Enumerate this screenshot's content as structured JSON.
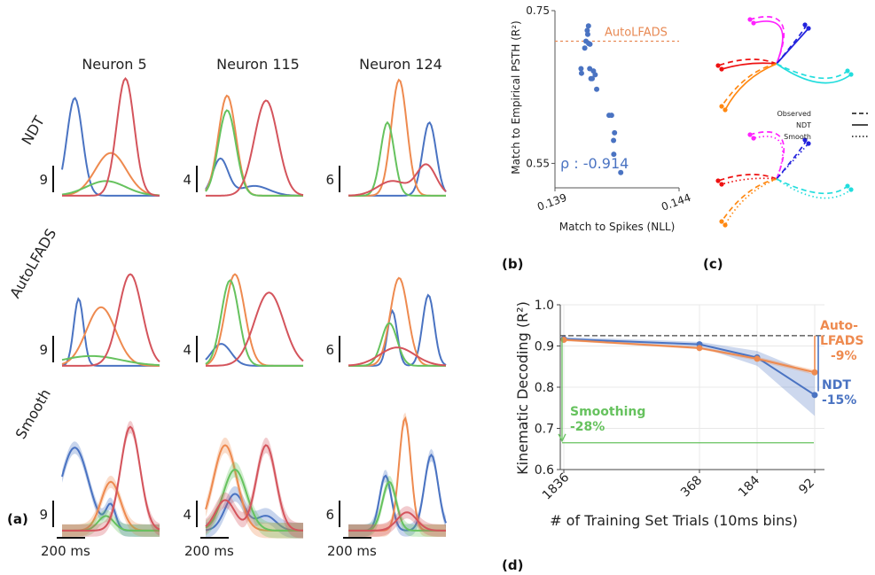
{
  "panel_labels": {
    "a": "(a)",
    "b": "(b)",
    "c": "(c)",
    "d": "(d)"
  },
  "colors": {
    "blue": "#4a73c2",
    "orange": "#ee8a4f",
    "green": "#66c25e",
    "red": "#d4545c",
    "pred_line": "#e88a55",
    "dash_black": "#444444",
    "traj_magenta": "#ff22ff",
    "traj_blue": "#2222dd",
    "traj_red": "#ee1111",
    "traj_orange": "#ff8811",
    "traj_cyan": "#22dddd"
  },
  "chart_data": [
    {
      "id": "a",
      "type": "line",
      "columns": [
        "Neuron 5",
        "Neuron 115",
        "Neuron 124"
      ],
      "rows": [
        "NDT",
        "AutoLFADS",
        "Smooth"
      ],
      "scale_labels": [
        [
          "9",
          "4",
          "6"
        ],
        [
          "9",
          "4",
          "6"
        ],
        [
          "9",
          "4",
          "6"
        ]
      ],
      "time_scale_label": "200 ms",
      "series_colors": [
        "blue",
        "orange",
        "green",
        "red"
      ]
    },
    {
      "id": "b",
      "type": "scatter",
      "xlabel": "Match to Spikes (NLL)",
      "ylabel": "Match to Empirical PSTH (R²)",
      "xticks": [
        "0.139",
        "0.144"
      ],
      "yticks": [
        "0.75",
        "0.55"
      ],
      "xlim": [
        0.139,
        0.144
      ],
      "ylim": [
        0.518,
        0.75
      ],
      "reference_line": {
        "label": "AutoLFADS",
        "y": 0.71
      },
      "annotation": "ρ : -0.914",
      "points": [
        [
          0.14035,
          0.73
        ],
        [
          0.1403,
          0.724
        ],
        [
          0.14032,
          0.719
        ],
        [
          0.14025,
          0.71
        ],
        [
          0.14036,
          0.707
        ],
        [
          0.14041,
          0.706
        ],
        [
          0.1402,
          0.701
        ],
        [
          0.14005,
          0.674
        ],
        [
          0.1404,
          0.674
        ],
        [
          0.14055,
          0.671
        ],
        [
          0.14062,
          0.666
        ],
        [
          0.14007,
          0.668
        ],
        [
          0.14045,
          0.661
        ],
        [
          0.1405,
          0.661
        ],
        [
          0.14068,
          0.647
        ],
        [
          0.14118,
          0.613
        ],
        [
          0.14128,
          0.613
        ],
        [
          0.1414,
          0.59
        ],
        [
          0.14136,
          0.58
        ],
        [
          0.14137,
          0.562
        ],
        [
          0.14165,
          0.538
        ]
      ]
    },
    {
      "id": "c",
      "type": "line",
      "legend": [
        "Observed",
        "NDT",
        "Smooth"
      ],
      "legend_position": "center-right"
    },
    {
      "id": "d",
      "type": "line",
      "xlabel": "# of Training Set Trials (10ms bins)",
      "ylabel": "Kinematic Decoding (R²)",
      "x": [
        1836,
        368,
        184,
        92
      ],
      "xticks": [
        "1836",
        "368",
        "184",
        "92"
      ],
      "yticks": [
        "0.6",
        "0.7",
        "0.8",
        "0.9",
        "1.0"
      ],
      "ylim": [
        0.6,
        1.0
      ],
      "series": [
        {
          "name": "NDT",
          "values": [
            0.917,
            0.904,
            0.872,
            0.781
          ],
          "lower": [
            0.912,
            0.898,
            0.852,
            0.73
          ],
          "upper": [
            0.922,
            0.91,
            0.888,
            0.83
          ]
        },
        {
          "name": "Auto-LFADS",
          "values": [
            0.915,
            0.895,
            0.869,
            0.836
          ],
          "lower": [
            0.912,
            0.892,
            0.864,
            0.83
          ],
          "upper": [
            0.918,
            0.898,
            0.874,
            0.842
          ]
        }
      ],
      "baseline": 0.925,
      "smoothing_value": 0.665,
      "annotations": {
        "autolfads_1": "Auto-",
        "autolfads_2": "LFADS",
        "autolfads_pct": "-9%",
        "ndt_1": "NDT",
        "ndt_pct": "-15%",
        "smooth_1": "Smoothing",
        "smooth_pct": "-28%"
      }
    }
  ]
}
